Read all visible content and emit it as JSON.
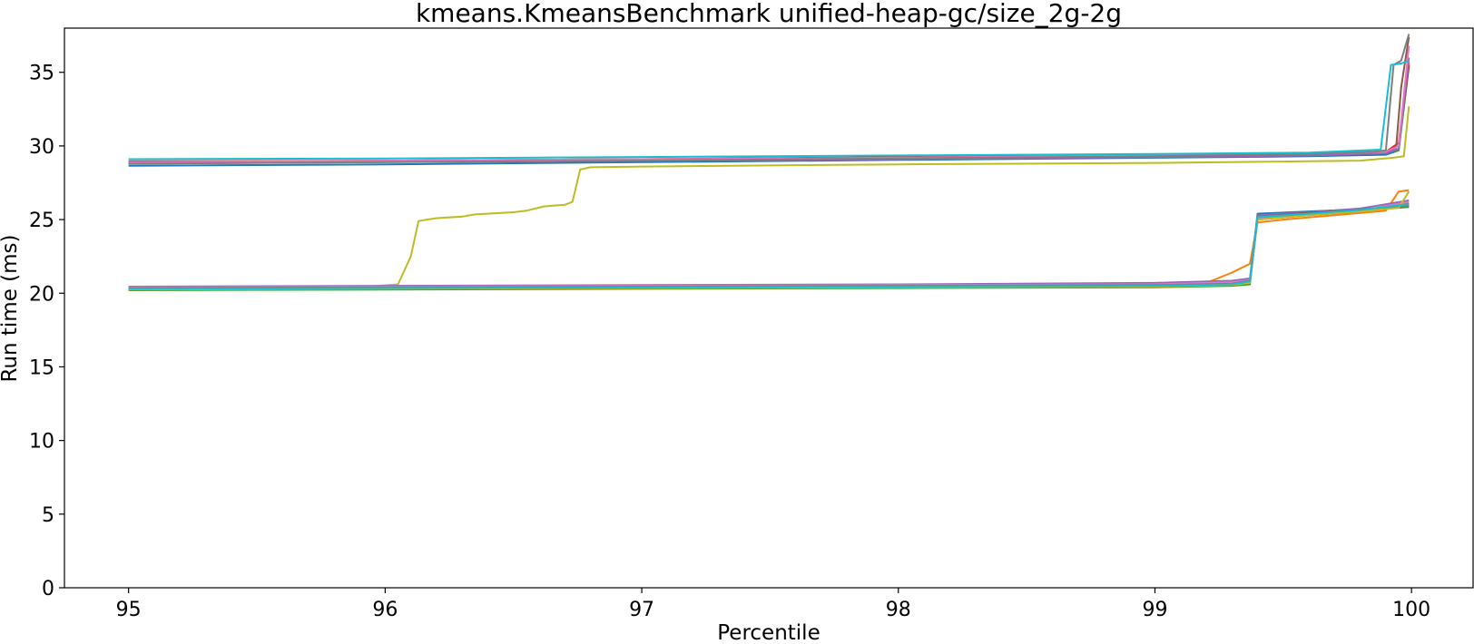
{
  "chart_data": {
    "type": "line",
    "title": "kmeans.KmeansBenchmark unified-heap-gc/size_2g-2g",
    "xlabel": "Percentile",
    "ylabel": "Run time (ms)",
    "xlim": [
      94.75,
      100.24
    ],
    "ylim": [
      0,
      38
    ],
    "xticks": [
      95,
      96,
      97,
      98,
      99,
      100
    ],
    "yticks": [
      0,
      5,
      10,
      15,
      20,
      25,
      30,
      35
    ],
    "grid": false,
    "legend": "none",
    "series": [
      {
        "color": "#1f77b4",
        "points": [
          [
            95,
            28.65
          ],
          [
            96,
            28.75
          ],
          [
            97,
            28.9
          ],
          [
            98,
            29.05
          ],
          [
            99,
            29.2
          ],
          [
            99.6,
            29.3
          ],
          [
            99.9,
            29.4
          ],
          [
            99.95,
            29.7
          ],
          [
            99.99,
            35.6
          ]
        ]
      },
      {
        "color": "#ff7f0e",
        "points": [
          [
            95,
            28.9
          ],
          [
            96,
            29.0
          ],
          [
            97,
            29.1
          ],
          [
            98,
            29.2
          ],
          [
            99,
            29.35
          ],
          [
            99.6,
            29.5
          ],
          [
            99.9,
            29.6
          ],
          [
            99.95,
            29.8
          ],
          [
            99.99,
            35.7
          ]
        ]
      },
      {
        "color": "#2ca02c",
        "points": [
          [
            95,
            28.85
          ],
          [
            96,
            28.95
          ],
          [
            97,
            29.05
          ],
          [
            98,
            29.15
          ],
          [
            99,
            29.3
          ],
          [
            99.6,
            29.4
          ],
          [
            99.9,
            29.55
          ],
          [
            99.95,
            29.7
          ],
          [
            99.99,
            35.4
          ]
        ]
      },
      {
        "color": "#d62728",
        "points": [
          [
            95,
            28.95
          ],
          [
            96,
            29.0
          ],
          [
            97,
            29.1
          ],
          [
            98,
            29.25
          ],
          [
            99,
            29.4
          ],
          [
            99.6,
            29.5
          ],
          [
            99.9,
            29.6
          ],
          [
            99.95,
            30.2
          ],
          [
            99.99,
            35.5
          ]
        ]
      },
      {
        "color": "#9467bd",
        "points": [
          [
            95,
            28.8
          ],
          [
            96,
            28.9
          ],
          [
            97,
            29.0
          ],
          [
            98,
            29.1
          ],
          [
            99,
            29.25
          ],
          [
            99.6,
            29.35
          ],
          [
            99.9,
            29.5
          ],
          [
            99.95,
            29.8
          ],
          [
            99.99,
            36.0
          ]
        ]
      },
      {
        "color": "#8c564b",
        "points": [
          [
            95,
            28.85
          ],
          [
            96,
            28.95
          ],
          [
            97,
            29.05
          ],
          [
            98,
            29.2
          ],
          [
            99,
            29.35
          ],
          [
            99.6,
            29.45
          ],
          [
            99.9,
            29.6
          ],
          [
            99.94,
            29.9
          ],
          [
            99.96,
            34.0
          ],
          [
            99.99,
            37.4
          ]
        ]
      },
      {
        "color": "#e377c2",
        "points": [
          [
            95,
            28.9
          ],
          [
            96,
            29.0
          ],
          [
            97,
            29.1
          ],
          [
            98,
            29.2
          ],
          [
            99,
            29.35
          ],
          [
            99.6,
            29.45
          ],
          [
            99.9,
            29.6
          ],
          [
            99.95,
            30.0
          ],
          [
            99.99,
            36.8
          ]
        ]
      },
      {
        "color": "#7f7f7f",
        "points": [
          [
            95,
            28.8
          ],
          [
            96,
            28.9
          ],
          [
            97,
            29.0
          ],
          [
            98,
            29.15
          ],
          [
            99,
            29.3
          ],
          [
            99.6,
            29.45
          ],
          [
            99.85,
            29.6
          ],
          [
            99.9,
            29.7
          ],
          [
            99.93,
            35.5
          ],
          [
            99.96,
            35.8
          ],
          [
            99.99,
            37.6
          ]
        ]
      },
      {
        "color": "#17becf",
        "points": [
          [
            95,
            29.1
          ],
          [
            96,
            29.15
          ],
          [
            97,
            29.25
          ],
          [
            98,
            29.35
          ],
          [
            99,
            29.45
          ],
          [
            99.6,
            29.55
          ],
          [
            99.88,
            29.75
          ],
          [
            99.92,
            35.5
          ],
          [
            99.96,
            35.6
          ],
          [
            99.99,
            35.8
          ]
        ]
      },
      {
        "color": "#bcbd22",
        "points": [
          [
            95,
            20.35
          ],
          [
            95.9,
            20.4
          ],
          [
            96.05,
            20.6
          ],
          [
            96.1,
            22.5
          ],
          [
            96.13,
            24.9
          ],
          [
            96.2,
            25.1
          ],
          [
            96.3,
            25.2
          ],
          [
            96.35,
            25.35
          ],
          [
            96.5,
            25.5
          ],
          [
            96.55,
            25.6
          ],
          [
            96.62,
            25.9
          ],
          [
            96.7,
            26.0
          ],
          [
            96.73,
            26.2
          ],
          [
            96.76,
            28.4
          ],
          [
            96.8,
            28.55
          ],
          [
            97,
            28.6
          ],
          [
            98,
            28.75
          ],
          [
            99,
            28.85
          ],
          [
            99.8,
            29.0
          ],
          [
            99.93,
            29.2
          ],
          [
            99.97,
            29.3
          ],
          [
            99.99,
            32.7
          ]
        ]
      },
      {
        "color": "#1f77b4",
        "points": [
          [
            95,
            20.3
          ],
          [
            96,
            20.35
          ],
          [
            97,
            20.4
          ],
          [
            98,
            20.45
          ],
          [
            99,
            20.5
          ],
          [
            99.3,
            20.55
          ],
          [
            99.37,
            20.7
          ],
          [
            99.4,
            25.4
          ],
          [
            99.6,
            25.55
          ],
          [
            99.8,
            25.7
          ],
          [
            99.99,
            25.9
          ]
        ]
      },
      {
        "color": "#ff7f0e",
        "points": [
          [
            95,
            20.35
          ],
          [
            96,
            20.4
          ],
          [
            97,
            20.45
          ],
          [
            98,
            20.5
          ],
          [
            99,
            20.55
          ],
          [
            99.2,
            20.7
          ],
          [
            99.3,
            21.4
          ],
          [
            99.37,
            22.0
          ],
          [
            99.4,
            24.8
          ],
          [
            99.5,
            25.0
          ],
          [
            99.7,
            25.3
          ],
          [
            99.9,
            25.6
          ],
          [
            99.95,
            26.9
          ],
          [
            99.99,
            27.0
          ]
        ]
      },
      {
        "color": "#2ca02c",
        "points": [
          [
            95,
            20.2
          ],
          [
            96,
            20.25
          ],
          [
            97,
            20.3
          ],
          [
            98,
            20.35
          ],
          [
            99,
            20.4
          ],
          [
            99.3,
            20.5
          ],
          [
            99.37,
            20.6
          ],
          [
            99.4,
            25.1
          ],
          [
            99.6,
            25.4
          ],
          [
            99.8,
            25.6
          ],
          [
            99.99,
            25.85
          ]
        ]
      },
      {
        "color": "#d62728",
        "points": [
          [
            95,
            20.25
          ],
          [
            96,
            20.3
          ],
          [
            97,
            20.35
          ],
          [
            98,
            20.4
          ],
          [
            99,
            20.45
          ],
          [
            99.3,
            20.55
          ],
          [
            99.37,
            20.75
          ],
          [
            99.4,
            25.0
          ],
          [
            99.6,
            25.3
          ],
          [
            99.8,
            25.55
          ],
          [
            99.99,
            26.1
          ]
        ]
      },
      {
        "color": "#9467bd",
        "points": [
          [
            95,
            20.45
          ],
          [
            96,
            20.5
          ],
          [
            97,
            20.55
          ],
          [
            98,
            20.6
          ],
          [
            99,
            20.7
          ],
          [
            99.3,
            20.85
          ],
          [
            99.37,
            21.0
          ],
          [
            99.4,
            25.3
          ],
          [
            99.6,
            25.5
          ],
          [
            99.8,
            25.75
          ],
          [
            99.99,
            26.3
          ]
        ]
      },
      {
        "color": "#8c564b",
        "points": [
          [
            95,
            20.3
          ],
          [
            96,
            20.35
          ],
          [
            97,
            20.4
          ],
          [
            98,
            20.45
          ],
          [
            99,
            20.5
          ],
          [
            99.3,
            20.6
          ],
          [
            99.37,
            20.8
          ],
          [
            99.4,
            25.2
          ],
          [
            99.6,
            25.45
          ],
          [
            99.8,
            25.65
          ],
          [
            99.99,
            26.0
          ]
        ]
      },
      {
        "color": "#e377c2",
        "points": [
          [
            95,
            20.4
          ],
          [
            96,
            20.45
          ],
          [
            97,
            20.5
          ],
          [
            98,
            20.55
          ],
          [
            99,
            20.6
          ],
          [
            99.3,
            20.75
          ],
          [
            99.37,
            20.9
          ],
          [
            99.4,
            25.1
          ],
          [
            99.6,
            25.35
          ],
          [
            99.8,
            25.6
          ],
          [
            99.99,
            26.2
          ]
        ]
      },
      {
        "color": "#7f7f7f",
        "points": [
          [
            95,
            20.35
          ],
          [
            96,
            20.4
          ],
          [
            97,
            20.45
          ],
          [
            98,
            20.5
          ],
          [
            99,
            20.55
          ],
          [
            99.3,
            20.65
          ],
          [
            99.37,
            20.85
          ],
          [
            99.4,
            25.2
          ],
          [
            99.6,
            25.4
          ],
          [
            99.8,
            25.6
          ],
          [
            99.99,
            25.95
          ]
        ]
      },
      {
        "color": "#bcbd22",
        "points": [
          [
            95,
            20.25
          ],
          [
            96,
            20.3
          ],
          [
            97,
            20.35
          ],
          [
            98,
            20.4
          ],
          [
            99,
            20.45
          ],
          [
            99.3,
            20.55
          ],
          [
            99.37,
            20.7
          ],
          [
            99.4,
            25.0
          ],
          [
            99.6,
            25.3
          ],
          [
            99.8,
            25.55
          ],
          [
            99.95,
            25.8
          ],
          [
            99.99,
            26.9
          ]
        ]
      },
      {
        "color": "#17becf",
        "points": [
          [
            95,
            20.3
          ],
          [
            96,
            20.35
          ],
          [
            97,
            20.4
          ],
          [
            98,
            20.45
          ],
          [
            99,
            20.5
          ],
          [
            99.3,
            20.6
          ],
          [
            99.37,
            20.8
          ],
          [
            99.4,
            25.15
          ],
          [
            99.6,
            25.4
          ],
          [
            99.8,
            25.65
          ],
          [
            99.99,
            26.05
          ]
        ]
      }
    ]
  }
}
